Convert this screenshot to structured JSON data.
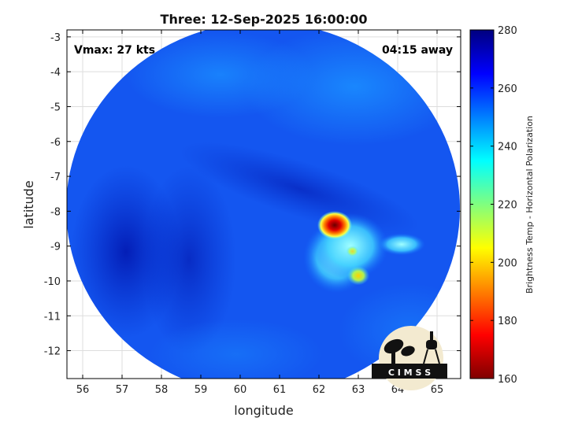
{
  "chart_data": {
    "type": "heatmap",
    "title": "Three: 12-Sep-2025 16:00:00",
    "xlabel": "longitude",
    "ylabel": "latitude",
    "xlim": [
      55.6,
      65.6
    ],
    "ylim": [
      -12.8,
      -2.8
    ],
    "x_ticks": [
      56,
      57,
      58,
      59,
      60,
      61,
      62,
      63,
      64,
      65
    ],
    "y_ticks": [
      -3,
      -4,
      -5,
      -6,
      -7,
      -8,
      -9,
      -10,
      -11,
      -12
    ],
    "grid": true,
    "annotations": {
      "vmax": "Vmax: 27 kts",
      "away": "04:15 away"
    },
    "colorbar": {
      "label": "Brightness Temp - Horizontal Polarization",
      "range": [
        160,
        280
      ],
      "ticks": [
        280,
        260,
        240,
        220,
        200,
        180,
        160
      ],
      "colormap": "jet"
    },
    "features": [
      {
        "name": "convective core",
        "lon": 62.4,
        "lat": -8.4,
        "value": 165
      },
      {
        "name": "cold cloud region",
        "lon": 62.8,
        "lat": -9.0,
        "value": 235
      },
      {
        "name": "secondary cell",
        "lon": 63.0,
        "lat": -9.85,
        "value": 205
      },
      {
        "name": "eastern cell",
        "lon": 64.1,
        "lat": -8.95,
        "value": 225
      }
    ],
    "background_value": 258,
    "logo_text": "C I M S S"
  },
  "colors": {
    "background": "#ffffff",
    "axes": "#000000",
    "grid": "#dddddd"
  }
}
